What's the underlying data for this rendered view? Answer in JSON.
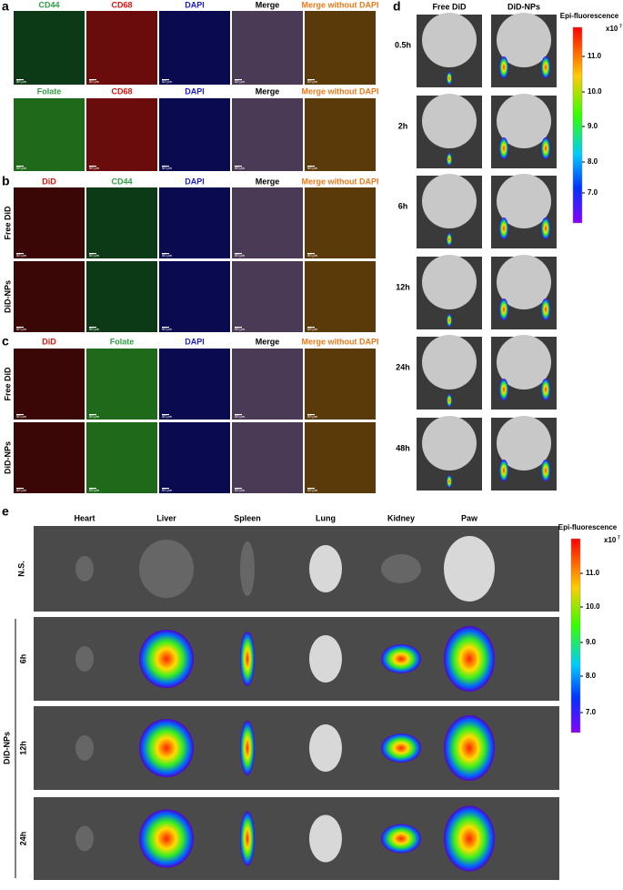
{
  "panels": {
    "a": {
      "letter": "a",
      "rows": [
        {
          "headers": [
            "CD44",
            "CD68",
            "DAPI",
            "Merge",
            "Merge without DAPI"
          ]
        },
        {
          "headers": [
            "Folate",
            "CD68",
            "DAPI",
            "Merge",
            "Merge without DAPI"
          ]
        }
      ]
    },
    "b": {
      "letter": "b",
      "headers": [
        "DiD",
        "CD44",
        "DAPI",
        "Merge",
        "Merge without DAPI"
      ],
      "row_labels": [
        "Free DiD",
        "DiD-NPs"
      ]
    },
    "c": {
      "letter": "c",
      "headers": [
        "DiD",
        "Folate",
        "DAPI",
        "Merge",
        "Merge without DAPI"
      ],
      "row_labels": [
        "Free DiD",
        "DiD-NPs"
      ]
    },
    "d": {
      "letter": "d",
      "headers": [
        "Free DiD",
        "DiD-NPs"
      ],
      "times": [
        "0.5h",
        "2h",
        "6h",
        "12h",
        "24h",
        "48h"
      ]
    },
    "e": {
      "letter": "e",
      "organs": [
        "Heart",
        "Liver",
        "Spleen",
        "Lung",
        "Kidney",
        "Paw"
      ],
      "control_label": "N.S.",
      "group_label": "DiD-NPs",
      "times": [
        "6h",
        "12h",
        "24h"
      ]
    }
  },
  "scale_bar": "50 μm",
  "colorbar": {
    "title": "Epi-fluorescence",
    "unit": "x10",
    "exponent": "7",
    "ticks": [
      "11.0",
      "10.0",
      "9.0",
      "8.0",
      "7.0"
    ]
  }
}
